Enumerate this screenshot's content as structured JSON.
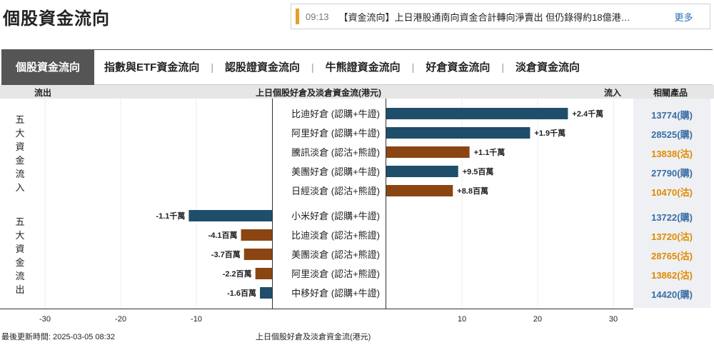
{
  "page": {
    "title": "個股資金流向"
  },
  "ticker": {
    "time": "09:13",
    "text": "【資金流向】上日港股通南向資金合計轉向淨賣出 但仍錄得約18億港…",
    "more": "更多"
  },
  "tabs": [
    "個股資金流向",
    "指數與ETF資金流向",
    "認股證資金流向",
    "牛熊證資金流向",
    "好倉資金流向",
    "淡倉資金流向"
  ],
  "header": {
    "outflow": "流出",
    "title": "上日個股好倉及淡倉資金流(港元)",
    "inflow": "流入",
    "products": "相關產品"
  },
  "side_labels": {
    "inflow": "五大資金流入",
    "outflow": "五大資金流出"
  },
  "colors": {
    "bull": "#1f4e6b",
    "bear": "#8b4513",
    "call": "#3a6ea5",
    "put": "#e08a00"
  },
  "footer": {
    "updated": "最後更新時間: 2025-03-05 08:32",
    "title": "上日個股好倉及淡倉資金流(港元)"
  },
  "chart_data": {
    "type": "bar",
    "orientation": "horizontal",
    "unit": "百萬港元",
    "xlim": [
      -30,
      30
    ],
    "xticks": [
      "-30",
      "-20",
      "-10",
      "10",
      "20",
      "30"
    ],
    "bars": [
      {
        "name": "比迪好倉 (認購+牛證)",
        "value": 24,
        "label": "+2.4千萬",
        "kind": "bull",
        "product": "13774(購)",
        "ptype": "call"
      },
      {
        "name": "阿里好倉 (認購+牛證)",
        "value": 19,
        "label": "+1.9千萬",
        "kind": "bull",
        "product": "28525(購)",
        "ptype": "call"
      },
      {
        "name": "騰訊淡倉 (認沽+熊證)",
        "value": 11,
        "label": "+1.1千萬",
        "kind": "bear",
        "product": "13838(沽)",
        "ptype": "put"
      },
      {
        "name": "美團好倉 (認購+牛證)",
        "value": 9.5,
        "label": "+9.5百萬",
        "kind": "bull",
        "product": "27790(購)",
        "ptype": "call"
      },
      {
        "name": "日經淡倉 (認沽+熊證)",
        "value": 8.8,
        "label": "+8.8百萬",
        "kind": "bear",
        "product": "10470(沽)",
        "ptype": "put"
      },
      {
        "name": "小米好倉 (認購+牛證)",
        "value": -11,
        "label": "-1.1千萬",
        "kind": "bull",
        "product": "13722(購)",
        "ptype": "call"
      },
      {
        "name": "比迪淡倉 (認沽+熊證)",
        "value": -4.1,
        "label": "-4.1百萬",
        "kind": "bear",
        "product": "13720(沽)",
        "ptype": "put"
      },
      {
        "name": "美團淡倉 (認沽+熊證)",
        "value": -3.7,
        "label": "-3.7百萬",
        "kind": "bear",
        "product": "28765(沽)",
        "ptype": "put"
      },
      {
        "name": "阿里淡倉 (認沽+熊證)",
        "value": -2.2,
        "label": "-2.2百萬",
        "kind": "bear",
        "product": "13862(沽)",
        "ptype": "put"
      },
      {
        "name": "中移好倉 (認購+牛證)",
        "value": -1.6,
        "label": "-1.6百萬",
        "kind": "bull",
        "product": "14420(購)",
        "ptype": "call"
      }
    ]
  }
}
